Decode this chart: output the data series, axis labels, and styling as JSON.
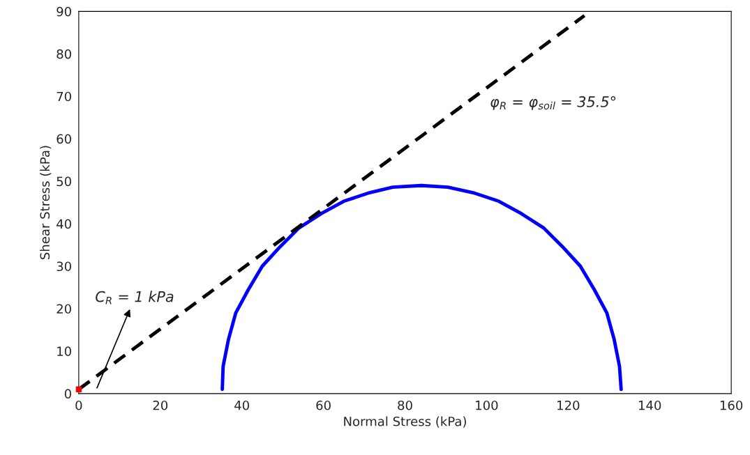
{
  "chart_data": {
    "type": "line",
    "xlabel": "Normal Stress (kPa)",
    "ylabel": "Shear Stress (kPa)",
    "xlim": [
      0,
      160
    ],
    "xticks": [
      0,
      20,
      40,
      60,
      80,
      100,
      120,
      140,
      160
    ],
    "ylim": [
      0,
      90
    ],
    "yticks": [
      0,
      10,
      20,
      30,
      40,
      50,
      60,
      70,
      80,
      90
    ],
    "grid": false,
    "legend": false,
    "series": [
      {
        "color": "#0000ff",
        "line_style": "solid",
        "x": [
          35.2,
          35.4,
          36.7,
          38.5,
          41.6,
          45.0,
          49.4,
          54.0,
          59.5,
          65.0,
          71.3,
          77.0,
          84,
          90.5,
          96.7,
          103.0,
          108.5,
          114.0,
          118.6,
          123.0,
          126.4,
          129.5,
          131.3,
          132.6,
          133
        ],
        "values": [
          1,
          6.4,
          12.7,
          19.0,
          24.5,
          30.0,
          34.6,
          39.0,
          42.4,
          45.3,
          47.3,
          48.6,
          49,
          48.6,
          47.3,
          45.3,
          42.4,
          39.0,
          34.6,
          30.0,
          24.5,
          19.0,
          12.7,
          6.4,
          1
        ]
      },
      {
        "color": "#000000",
        "line_style": "dashed",
        "x": [
          0,
          124
        ],
        "values": [
          1,
          89
        ]
      },
      {
        "type": "scatter",
        "color": "#ff0000",
        "marker": "square",
        "x": [
          0
        ],
        "values": [
          1
        ]
      }
    ],
    "annotations": [
      "C$_{R}$ = 1 kPa",
      "φ$_{R}$ = φ$_{soil}$ = 35.5°"
    ]
  }
}
